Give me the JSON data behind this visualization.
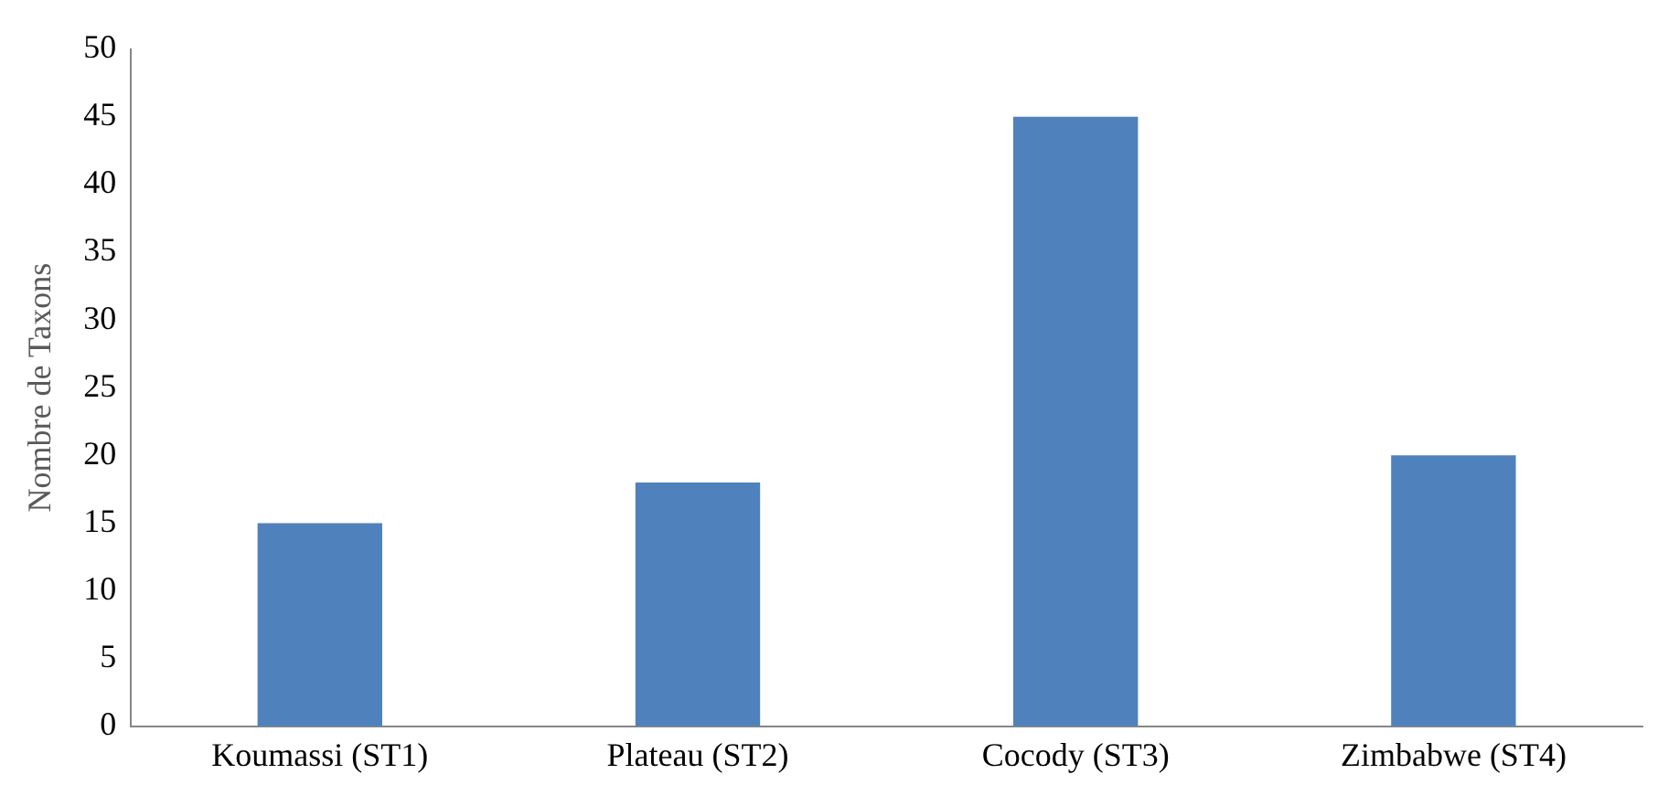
{
  "chart_data": {
    "type": "bar",
    "ylabel": "Nombre de Taxons",
    "categories": [
      "Koumassi (ST1)",
      "Plateau (ST2)",
      "Cocody (ST3)",
      "Zimbabwe (ST4)"
    ],
    "values": [
      15,
      18,
      45,
      20
    ],
    "color": "#4f81bd",
    "ylim": [
      0,
      50
    ],
    "yticks": [
      0,
      5,
      10,
      15,
      20,
      25,
      30,
      35,
      40,
      45,
      50
    ],
    "grid": false,
    "legend": false
  }
}
